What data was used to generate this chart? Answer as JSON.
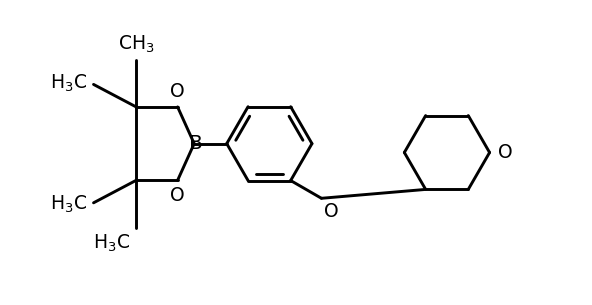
{
  "background_color": "#ffffff",
  "line_color": "#000000",
  "line_width": 2.1,
  "font_size": 13.5,
  "figsize": [
    5.92,
    3.05
  ],
  "dpi": 100,
  "xlim": [
    0,
    10
  ],
  "ylim": [
    0,
    5.1
  ]
}
